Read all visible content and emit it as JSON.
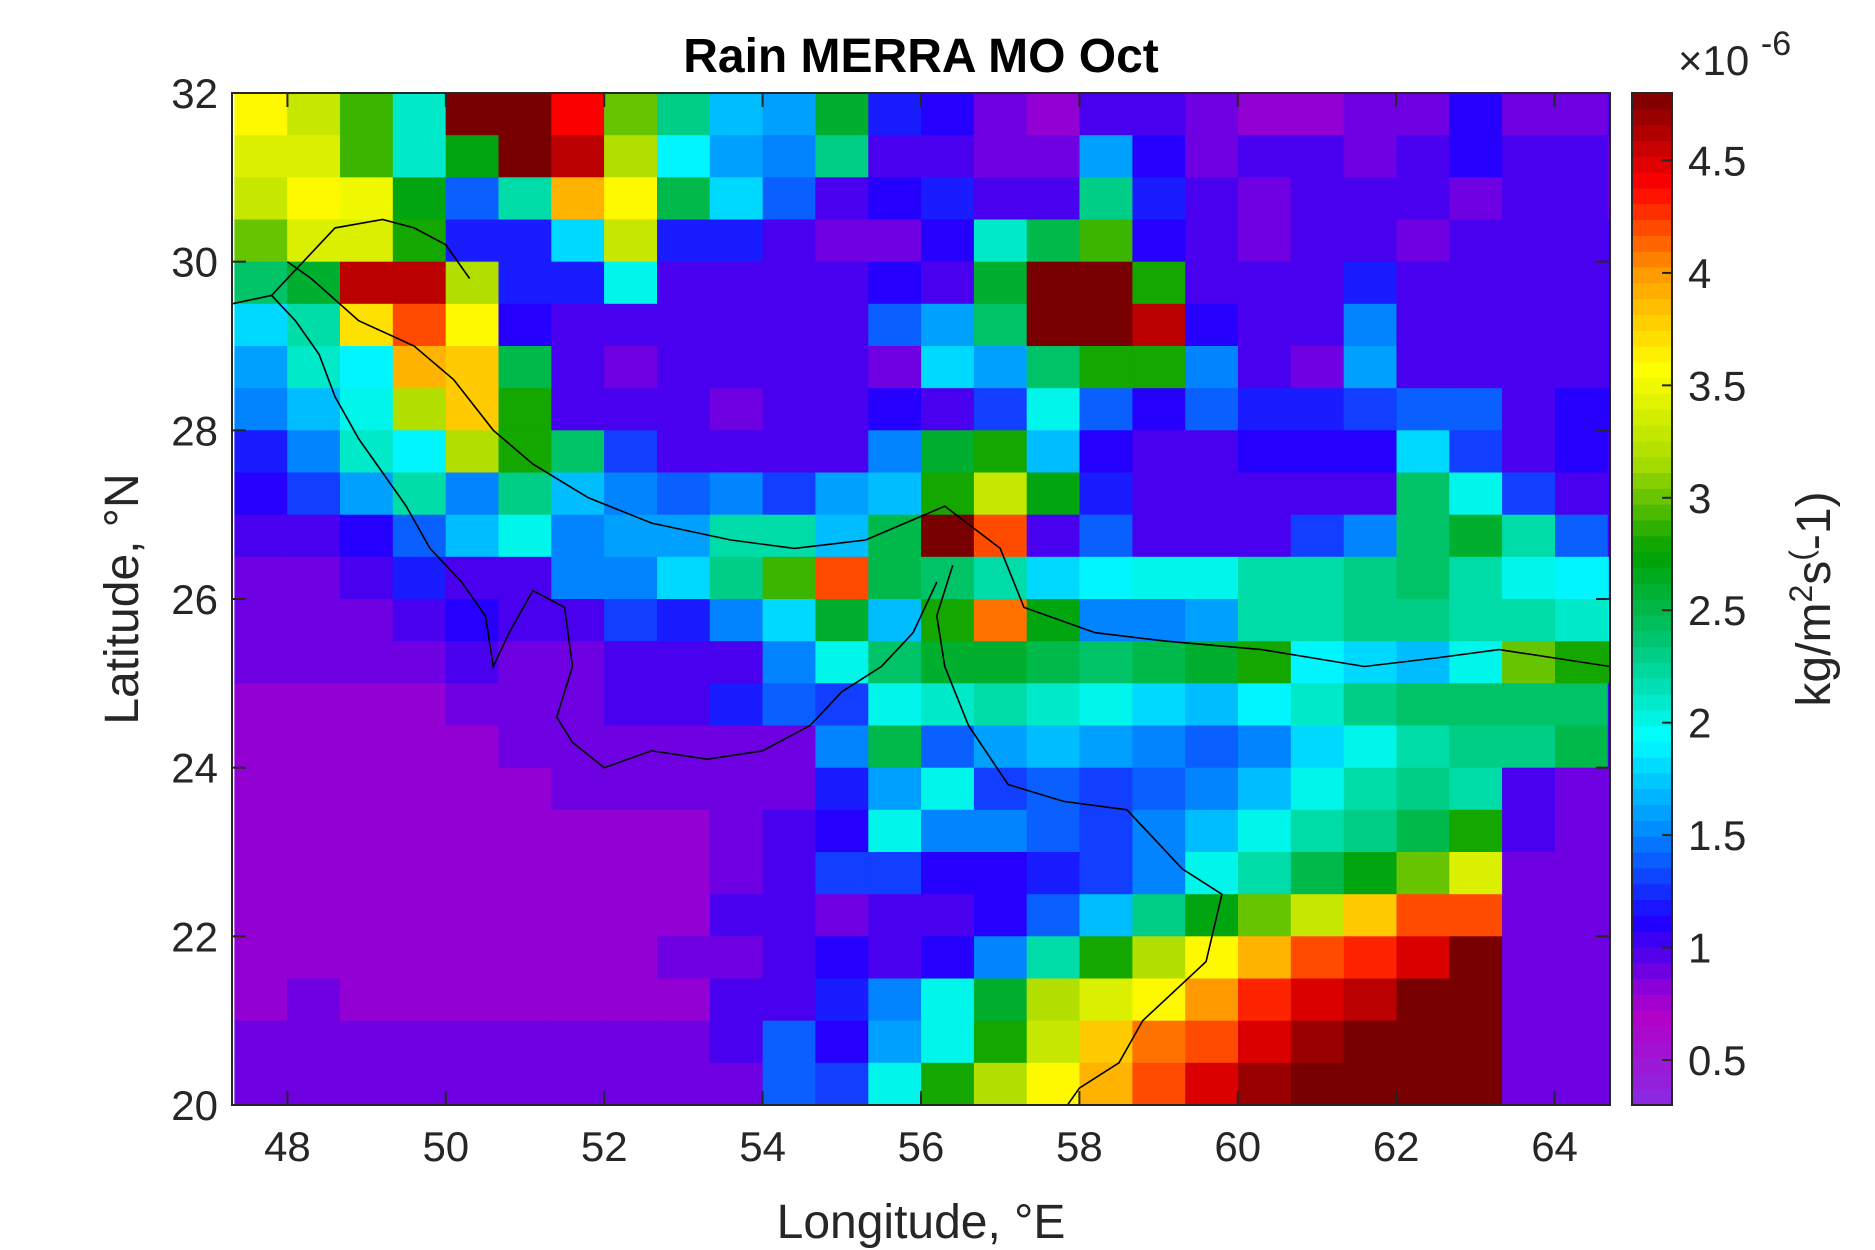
{
  "chart_data": {
    "type": "heatmap",
    "title": "Rain MERRA MO Oct",
    "xlabel": "Longitude, °E",
    "ylabel": "Latitude, °N",
    "xlim": [
      47.3,
      64.7
    ],
    "ylim": [
      20,
      32
    ],
    "xticks": [
      48,
      50,
      52,
      54,
      56,
      58,
      60,
      62,
      64
    ],
    "yticks": [
      20,
      22,
      24,
      26,
      28,
      30,
      32
    ],
    "grid": false,
    "colorbar": {
      "label": "kg/m^2s^(-1)",
      "label_text": "kg/m",
      "label_sup": "2",
      "label_mid": "s",
      "label_sup2": "(",
      "label_tail": "-1)",
      "exponent_prefix": "×10",
      "exponent": "-6",
      "range": [
        0.3,
        4.8
      ],
      "ticks": [
        0.5,
        1,
        1.5,
        2,
        2.5,
        3,
        3.5,
        4,
        4.5
      ],
      "colormap": [
        "#8a2be2",
        "#b400c8",
        "#1e00ff",
        "#008cff",
        "#00ffff",
        "#00c878",
        "#00a000",
        "#aadc00",
        "#ffff00",
        "#ffa000",
        "#ff0000",
        "#780000"
      ]
    },
    "grid_layout": {
      "lon_start": 47.33,
      "lon_step": 0.667,
      "lat_start": 32.0,
      "lat_step": -0.5,
      "rows_note": "row 0 = northernmost (31.75°N); values in units of 1e-6 kg/m^2/s"
    },
    "values": [
      [
        3.6,
        3.3,
        2.9,
        2.1,
        4.8,
        4.8,
        4.4,
        3.0,
        2.3,
        1.7,
        1.6,
        2.6,
        1.2,
        1.1,
        0.9,
        0.8,
        1.0,
        1.0,
        0.9,
        0.8,
        0.8,
        0.9,
        0.9,
        1.1,
        0.9,
        0.9,
        1.0,
        1.0,
        0.9,
        0.9,
        0.9,
        1.0,
        1.1,
        0.9,
        0.9
      ],
      [
        3.4,
        3.4,
        2.9,
        2.1,
        2.7,
        4.8,
        4.6,
        3.2,
        1.9,
        1.6,
        1.5,
        2.3,
        1.0,
        1.0,
        0.9,
        0.9,
        1.6,
        1.1,
        0.9,
        1.0,
        1.0,
        0.9,
        1.0,
        1.1,
        1.0,
        1.0,
        0.9,
        1.0,
        0.9,
        0.9,
        0.9,
        1.0,
        1.0,
        1.0,
        0.9
      ],
      [
        3.3,
        3.6,
        3.5,
        2.7,
        1.4,
        2.2,
        3.9,
        3.6,
        2.5,
        1.8,
        1.4,
        1.0,
        1.1,
        1.2,
        1.0,
        1.0,
        2.3,
        1.2,
        1.0,
        0.9,
        1.0,
        1.0,
        1.0,
        0.9,
        1.0,
        1.0,
        0.9,
        1.0,
        0.9,
        0.9,
        1.0,
        1.0,
        1.0,
        1.0,
        1.0
      ],
      [
        3.0,
        3.4,
        3.4,
        2.8,
        1.2,
        1.2,
        1.8,
        3.3,
        1.2,
        1.2,
        1.0,
        0.9,
        0.9,
        1.1,
        2.1,
        2.5,
        2.9,
        1.1,
        1.0,
        0.9,
        1.0,
        1.0,
        0.9,
        1.0,
        1.0,
        1.0,
        1.0,
        1.0,
        1.0,
        1.0,
        1.0,
        1.0,
        1.0,
        1.0,
        0.9
      ],
      [
        2.4,
        2.6,
        4.6,
        4.6,
        3.2,
        1.2,
        1.2,
        2.0,
        1.0,
        1.0,
        1.0,
        1.0,
        1.1,
        1.0,
        2.6,
        4.8,
        4.8,
        2.8,
        1.0,
        1.0,
        1.0,
        1.2,
        1.0,
        1.0,
        1.0,
        1.0,
        1.0,
        1.0,
        1.0,
        1.0,
        1.1,
        1.1,
        1.1,
        1.4,
        1.0
      ],
      [
        1.8,
        2.2,
        3.7,
        4.2,
        3.6,
        1.1,
        1.0,
        1.0,
        1.0,
        1.0,
        1.0,
        1.0,
        1.4,
        1.6,
        2.4,
        4.8,
        4.8,
        4.6,
        1.1,
        1.0,
        1.0,
        1.5,
        1.0,
        1.0,
        1.0,
        1.0,
        1.0,
        1.0,
        1.0,
        1.0,
        1.0,
        1.0,
        1.1,
        1.1,
        1.0
      ],
      [
        1.6,
        2.1,
        1.9,
        3.9,
        3.8,
        2.5,
        1.0,
        0.9,
        1.0,
        1.0,
        1.0,
        1.0,
        0.9,
        1.8,
        1.6,
        2.4,
        2.8,
        2.8,
        1.5,
        1.0,
        0.9,
        1.6,
        1.0,
        1.0,
        1.0,
        1.0,
        1.0,
        1.0,
        1.0,
        1.0,
        1.0,
        1.0,
        1.0,
        1.0,
        1.0
      ],
      [
        1.5,
        1.7,
        2.0,
        3.2,
        3.8,
        2.8,
        1.0,
        1.0,
        1.0,
        0.9,
        1.0,
        1.0,
        1.1,
        1.0,
        1.3,
        2.0,
        1.4,
        1.1,
        1.4,
        1.2,
        1.2,
        1.3,
        1.4,
        1.4,
        1.0,
        1.1,
        1.1,
        1.0,
        1.0,
        1.0,
        1.0,
        1.0,
        1.0,
        1.0,
        1.0
      ],
      [
        1.2,
        1.5,
        2.1,
        1.9,
        3.2,
        2.8,
        2.4,
        1.3,
        1.0,
        1.0,
        1.0,
        1.0,
        1.5,
        2.6,
        2.8,
        1.7,
        1.1,
        1.0,
        1.0,
        1.1,
        1.1,
        1.1,
        1.8,
        1.3,
        1.0,
        1.1,
        1.0,
        1.0,
        1.0,
        1.0,
        1.0,
        1.0,
        1.0,
        1.0,
        1.0
      ],
      [
        1.1,
        1.3,
        1.6,
        2.2,
        1.5,
        2.3,
        1.7,
        1.5,
        1.4,
        1.5,
        1.3,
        1.6,
        1.7,
        2.8,
        3.3,
        2.7,
        1.2,
        1.0,
        1.0,
        1.0,
        1.0,
        1.0,
        2.4,
        2.0,
        1.3,
        1.0,
        1.0,
        1.0,
        1.0,
        1.0,
        1.0,
        1.0,
        1.0,
        1.0,
        1.0
      ],
      [
        1.0,
        1.0,
        1.1,
        1.4,
        1.7,
        2.0,
        1.5,
        1.6,
        1.6,
        2.2,
        2.2,
        1.7,
        2.5,
        4.8,
        4.2,
        1.0,
        1.4,
        1.0,
        1.0,
        1.0,
        1.3,
        1.5,
        2.4,
        2.6,
        2.2,
        1.4,
        1.0,
        1.0,
        1.0,
        1.0,
        1.0,
        1.0,
        1.0,
        1.0,
        1.0
      ],
      [
        0.9,
        0.9,
        1.0,
        1.2,
        1.0,
        1.0,
        1.5,
        1.5,
        1.8,
        2.3,
        2.9,
        4.2,
        2.5,
        2.4,
        2.2,
        1.8,
        1.9,
        2.0,
        2.0,
        2.2,
        2.2,
        2.3,
        2.4,
        2.2,
        2.0,
        1.9,
        1.8,
        1.4,
        1.0,
        1.0,
        1.0,
        1.0,
        1.0,
        1.0,
        1.0
      ],
      [
        0.9,
        0.9,
        0.9,
        1.0,
        1.1,
        1.0,
        1.0,
        1.3,
        1.2,
        1.5,
        1.8,
        2.6,
        1.7,
        2.8,
        4.1,
        2.7,
        1.5,
        1.5,
        1.6,
        2.2,
        2.2,
        2.3,
        2.3,
        2.2,
        2.2,
        2.1,
        2.0,
        1.6,
        2.1,
        1.0,
        1.0,
        1.0,
        1.0,
        1.0,
        1.0
      ],
      [
        0.9,
        0.9,
        0.9,
        0.9,
        1.0,
        0.9,
        0.9,
        1.0,
        1.0,
        1.0,
        1.5,
        2.0,
        2.4,
        2.6,
        2.6,
        2.5,
        2.4,
        2.5,
        2.6,
        2.8,
        1.9,
        1.8,
        1.7,
        2.0,
        3.0,
        2.8,
        2.8,
        2.5,
        1.0,
        1.0,
        1.0,
        1.0,
        1.0,
        1.0,
        1.0
      ],
      [
        0.8,
        0.8,
        0.8,
        0.8,
        0.9,
        0.9,
        0.9,
        1.0,
        1.0,
        1.2,
        1.4,
        1.3,
        2.0,
        2.1,
        2.2,
        2.1,
        2.0,
        1.8,
        1.7,
        1.9,
        2.1,
        2.3,
        2.4,
        2.4,
        2.4,
        2.4,
        1.0,
        1.0,
        0.9,
        0.9,
        0.9,
        0.9,
        0.9,
        0.9,
        0.9
      ],
      [
        0.8,
        0.8,
        0.8,
        0.8,
        0.8,
        0.9,
        0.9,
        0.9,
        0.9,
        0.9,
        0.9,
        1.5,
        2.5,
        1.4,
        1.6,
        1.7,
        1.6,
        1.5,
        1.4,
        1.5,
        1.8,
        2.0,
        2.2,
        2.3,
        2.3,
        2.5,
        1.0,
        0.9,
        0.9,
        0.9,
        0.9,
        0.9,
        0.9,
        0.9,
        0.9
      ],
      [
        0.8,
        0.8,
        0.8,
        0.8,
        0.8,
        0.8,
        0.9,
        0.9,
        0.9,
        0.9,
        0.9,
        1.2,
        1.6,
        2.0,
        1.3,
        1.4,
        1.3,
        1.4,
        1.5,
        1.7,
        2.0,
        2.2,
        2.3,
        2.2,
        1.0,
        0.9,
        0.9,
        0.9,
        0.9,
        0.9,
        0.9,
        0.9,
        0.9,
        0.9,
        0.9
      ],
      [
        0.8,
        0.8,
        0.8,
        0.8,
        0.8,
        0.8,
        0.8,
        0.8,
        0.8,
        0.9,
        1.0,
        1.1,
        2.0,
        1.5,
        1.5,
        1.4,
        1.3,
        1.5,
        1.7,
        2.0,
        2.2,
        2.3,
        2.5,
        2.8,
        1.0,
        0.9,
        0.9,
        0.9,
        0.9,
        0.9,
        0.9,
        0.9,
        0.9,
        0.9,
        0.9
      ],
      [
        0.8,
        0.8,
        0.8,
        0.8,
        0.8,
        0.8,
        0.8,
        0.8,
        0.8,
        0.9,
        1.0,
        1.3,
        1.3,
        1.1,
        1.1,
        1.2,
        1.3,
        1.5,
        2.0,
        2.2,
        2.5,
        2.7,
        3.0,
        3.4,
        0.9,
        0.9,
        0.9,
        0.9,
        0.9,
        0.9,
        0.9,
        0.9,
        0.9,
        0.9,
        0.9
      ],
      [
        0.8,
        0.8,
        0.8,
        0.8,
        0.8,
        0.8,
        0.8,
        0.8,
        0.8,
        1.0,
        1.0,
        0.9,
        1.0,
        1.0,
        1.1,
        1.4,
        1.7,
        2.3,
        2.7,
        3.0,
        3.3,
        3.8,
        4.2,
        4.2,
        0.9,
        0.9,
        0.9,
        0.9,
        0.9,
        0.9,
        0.9,
        0.9,
        0.9,
        0.9,
        0.9
      ],
      [
        0.8,
        0.8,
        0.8,
        0.8,
        0.8,
        0.8,
        0.8,
        0.8,
        0.9,
        0.9,
        1.0,
        1.1,
        1.0,
        1.1,
        1.5,
        2.2,
        2.8,
        3.2,
        3.6,
        3.9,
        4.2,
        4.3,
        4.5,
        4.8,
        0.9,
        0.9,
        0.9,
        0.9,
        0.9,
        0.9,
        0.9,
        0.9,
        0.9,
        0.9,
        0.9
      ],
      [
        0.8,
        0.9,
        0.8,
        0.8,
        0.8,
        0.8,
        0.8,
        0.8,
        0.8,
        1.0,
        1.0,
        1.2,
        1.5,
        2.0,
        2.6,
        3.2,
        3.4,
        3.6,
        4.0,
        4.3,
        4.5,
        4.6,
        4.8,
        4.8,
        0.9,
        0.9,
        0.9,
        0.9,
        0.9,
        0.9,
        0.9,
        0.9,
        0.9,
        0.9,
        0.9
      ],
      [
        0.9,
        0.9,
        0.9,
        0.9,
        0.9,
        0.9,
        0.9,
        0.9,
        0.9,
        1.0,
        1.4,
        1.1,
        1.6,
        2.0,
        2.8,
        3.3,
        3.8,
        4.1,
        4.2,
        4.5,
        4.7,
        4.8,
        4.8,
        4.8,
        0.9,
        0.9,
        0.9,
        0.9,
        0.9,
        0.9,
        0.9,
        0.9,
        0.9,
        0.9,
        0.9
      ],
      [
        0.9,
        0.9,
        0.9,
        0.9,
        0.9,
        0.9,
        0.9,
        0.9,
        0.9,
        0.9,
        1.4,
        1.3,
        2.0,
        2.8,
        3.2,
        3.6,
        3.9,
        4.2,
        4.5,
        4.7,
        4.8,
        4.8,
        4.8,
        4.8,
        0.9,
        0.9,
        0.9,
        0.9,
        0.9,
        0.9,
        0.9,
        0.9,
        0.9,
        0.9,
        0.9
      ]
    ]
  }
}
